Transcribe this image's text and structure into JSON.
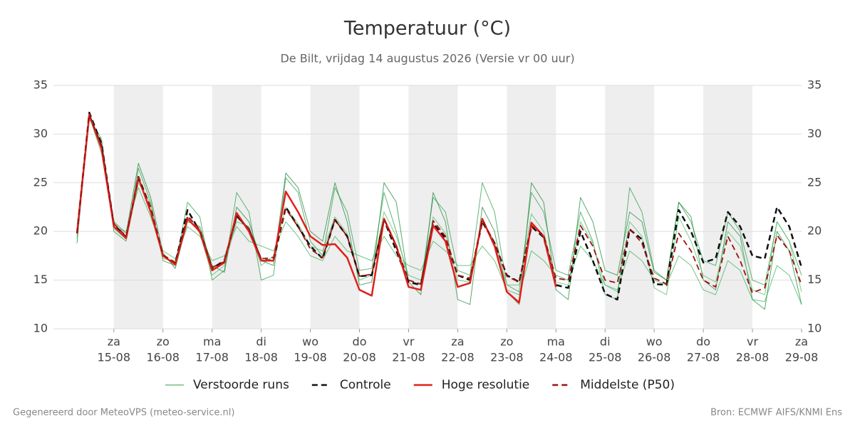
{
  "chart_data": {
    "type": "line",
    "title": "Temperatuur (°C)",
    "subtitle": "De Bilt, vrijdag 14 augustus 2026 (Versie vr 00 uur)",
    "footer_left": "Gegenereerd door MeteoVPS (meteo-service.nl)",
    "footer_right": "Bron: ECMWF AIFS/KNMI Ens",
    "x": [
      14.25,
      14.5,
      14.75,
      15,
      15.25,
      15.5,
      15.75,
      16,
      16.25,
      16.5,
      16.75,
      17,
      17.25,
      17.5,
      17.75,
      18,
      18.25,
      18.5,
      18.75,
      19,
      19.25,
      19.5,
      19.75,
      20,
      20.25,
      20.5,
      20.75,
      21,
      21.25,
      21.5,
      21.75,
      22,
      22.25,
      22.5,
      22.75,
      23,
      23.25,
      23.5,
      23.75,
      24,
      24.25,
      24.5,
      24.75,
      25,
      25.25,
      25.5,
      25.75,
      26,
      26.25,
      26.5,
      26.75,
      27,
      27.25,
      27.5,
      27.75,
      28,
      28.25,
      28.5,
      28.75,
      29
    ],
    "xlim": [
      13.77,
      29
    ],
    "xticks": [
      {
        "value": 15,
        "label": "15-08"
      },
      {
        "value": 16,
        "label": "16-08"
      },
      {
        "value": 17,
        "label": "17-08"
      },
      {
        "value": 18,
        "label": "18-08"
      },
      {
        "value": 19,
        "label": "19-08"
      },
      {
        "value": 20,
        "label": "20-08"
      },
      {
        "value": 21,
        "label": "21-08"
      },
      {
        "value": 22,
        "label": "22-08"
      },
      {
        "value": 23,
        "label": "23-08"
      },
      {
        "value": 24,
        "label": "24-08"
      },
      {
        "value": 25,
        "label": "25-08"
      },
      {
        "value": 26,
        "label": "26-08"
      },
      {
        "value": 27,
        "label": "27-08"
      },
      {
        "value": 28,
        "label": "28-08"
      },
      {
        "value": 29,
        "label": "29-08"
      }
    ],
    "xtick_weekdays": [
      "za",
      "zo",
      "ma",
      "di",
      "wo",
      "do",
      "vr",
      "za",
      "zo",
      "ma",
      "di",
      "wo",
      "do",
      "vr",
      "za"
    ],
    "ylim": [
      10,
      35
    ],
    "yticks": [
      10,
      15,
      20,
      25,
      30,
      35
    ],
    "grid": true,
    "series": [
      {
        "name": "Verstoorde runs",
        "color": "#2e9e4a",
        "dash": "solid",
        "width": 1,
        "values": [
          19.5,
          31.5,
          29.5,
          20,
          19,
          26.5,
          23,
          17,
          16.5,
          23,
          21.5,
          15,
          16,
          24,
          22,
          15,
          15.5,
          25.5,
          24,
          19,
          17.5,
          24.5,
          22,
          16,
          16.2,
          24,
          20,
          15,
          14.5,
          23.5,
          22,
          16,
          15.5,
          25,
          22,
          14.5,
          13.8,
          24,
          22,
          16,
          15.5,
          22,
          19,
          13.5,
          13,
          24.5,
          22,
          16,
          15,
          23,
          21,
          17,
          16.5,
          22,
          20,
          15,
          14.5,
          21,
          19,
          15.5
        ]
      },
      {
        "name": "Verstoorde runs",
        "color": "#3cb35a",
        "dash": "solid",
        "width": 1,
        "values": [
          20,
          31.8,
          28,
          20.5,
          20,
          24.5,
          21.5,
          18,
          17.2,
          20.5,
          19.5,
          17,
          17.5,
          20.5,
          19,
          18.5,
          18,
          21,
          19.5,
          17.5,
          17,
          19.5,
          18,
          17.5,
          17,
          19.5,
          17.5,
          16.5,
          16,
          19,
          18,
          16.5,
          16.5,
          18.5,
          17,
          14,
          13.5,
          18,
          17,
          15.5,
          15,
          18.5,
          17,
          14.5,
          14,
          18,
          17,
          15,
          14.5,
          17.5,
          16.5,
          14,
          13.5,
          17,
          16,
          13,
          12.8,
          16.5,
          15.5,
          12.5
        ]
      },
      {
        "name": "Verstoorde runs",
        "color": "#1f8a3c",
        "dash": "solid",
        "width": 1,
        "values": [
          18.8,
          32,
          29,
          21,
          19.8,
          27,
          23.5,
          17.8,
          16.2,
          21,
          20.5,
          16.5,
          15.8,
          22.5,
          21,
          17,
          16.5,
          26,
          24.5,
          20,
          19,
          25,
          21,
          14.5,
          14.8,
          25,
          23,
          14.8,
          13.5,
          24,
          21,
          13,
          12.5,
          22.5,
          20,
          13.8,
          12.5,
          25,
          23,
          14,
          13,
          23.5,
          21,
          16,
          15.5,
          22,
          21,
          15.8,
          15,
          23,
          21.5,
          15,
          14,
          21,
          19.5,
          13,
          12,
          20,
          18,
          12.5
        ]
      },
      {
        "name": "Verstoorde runs",
        "color": "#4fbf6a",
        "dash": "solid",
        "width": 1,
        "values": [
          19.2,
          32.1,
          28.5,
          20.3,
          19.2,
          25,
          22.8,
          17.2,
          17,
          21.5,
          19.8,
          15.5,
          16.5,
          21,
          20.5,
          16.5,
          17.5,
          22.5,
          20.8,
          18.5,
          18,
          21.5,
          19.8,
          15,
          15.5,
          22,
          19.5,
          15.5,
          15,
          21.5,
          19.8,
          15,
          14.8,
          21,
          19,
          14.5,
          14.5,
          21.8,
          20,
          14.8,
          14.5,
          21,
          18.8,
          14.5,
          13.8,
          21,
          19.5,
          14.2,
          13.5,
          21.5,
          19,
          15.5,
          14.8,
          20,
          18.5,
          14,
          13.5,
          21,
          19,
          13.8
        ]
      },
      {
        "name": "Controle",
        "color": "#111111",
        "dash": "dashed",
        "width": 2.5,
        "values": [
          19.8,
          32.2,
          29,
          20.7,
          19.4,
          25.6,
          22.4,
          17.5,
          16.7,
          22.2,
          20,
          16.2,
          17,
          21.6,
          20.2,
          17.1,
          17,
          22.5,
          20.5,
          18.5,
          17.2,
          21.2,
          19.5,
          15.4,
          15.5,
          21.2,
          18,
          14.8,
          14.5,
          20.8,
          19.3,
          15.5,
          15,
          21,
          18.8,
          15.5,
          14.8,
          20.5,
          19.4,
          14.5,
          14.2,
          20,
          17,
          13.6,
          13,
          20.2,
          19.2,
          14.6,
          14.5,
          22.2,
          20,
          16.8,
          17.2,
          22,
          20.5,
          17.5,
          17.2,
          22.5,
          20.5,
          16.3
        ]
      },
      {
        "name": "Hoge resolutie",
        "color": "#e0201b",
        "dash": "solid",
        "width": 2.5,
        "values": [
          19.8,
          32,
          28.5,
          20.5,
          19.3,
          25.5,
          22,
          17.5,
          16.6,
          21.3,
          20,
          16,
          16.8,
          21.9,
          20,
          17,
          17,
          24.1,
          22,
          19.5,
          18.6,
          18.7,
          17.3,
          14,
          13.4,
          21.3,
          18.5,
          14.3,
          14,
          20.6,
          19,
          14.3,
          14.7,
          21.3,
          18.5,
          13.8,
          12.7,
          20.9,
          19.5,
          14.3,
          null,
          null,
          null,
          null,
          null,
          null,
          null,
          null,
          null,
          null,
          null,
          null,
          null,
          null,
          null,
          null,
          null,
          null,
          null,
          null
        ]
      },
      {
        "name": "Middelste (P50)",
        "color": "#a01010",
        "dash": "dashed",
        "width": 1.8,
        "values": [
          19.8,
          32,
          28.8,
          20.8,
          19.5,
          25.4,
          22.5,
          17.6,
          16.8,
          21.6,
          20.2,
          16.3,
          16.9,
          21.5,
          20.3,
          17.2,
          17.3,
          22.3,
          20.5,
          18.2,
          17.3,
          21.2,
          19.5,
          15.4,
          15.6,
          21.3,
          18.5,
          15,
          14.6,
          21.1,
          19.5,
          15.5,
          15.2,
          21.2,
          18.8,
          15.4,
          14.8,
          20.6,
          19.6,
          15.2,
          15,
          20.6,
          18.5,
          15,
          14.7,
          20.3,
          18.8,
          15.2,
          14.6,
          19.8,
          18,
          15,
          14.3,
          19.5,
          17,
          13.7,
          14.2,
          19.6,
          18,
          14.5
        ]
      }
    ]
  }
}
